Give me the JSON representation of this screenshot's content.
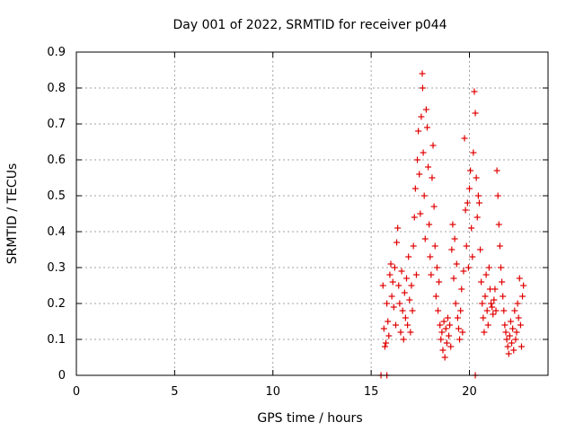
{
  "chart_data": {
    "type": "scatter",
    "title": "Day 001 of 2022, SRMTID for receiver p044",
    "xlabel": "GPS time / hours",
    "ylabel": "SRMTID / TECUs",
    "xlim": [
      0,
      24
    ],
    "ylim": [
      0,
      0.9
    ],
    "xticks": [
      0,
      5,
      10,
      15,
      20
    ],
    "yticks": [
      0,
      0.1,
      0.2,
      0.3,
      0.4,
      0.5,
      0.6,
      0.7,
      0.8,
      0.9
    ],
    "grid": true,
    "marker": "+",
    "color": "#e00000",
    "series": [
      {
        "name": "p044",
        "points": [
          [
            15.5,
            0.0
          ],
          [
            15.8,
            0.0
          ],
          [
            20.3,
            0.0
          ],
          [
            15.6,
            0.25
          ],
          [
            15.65,
            0.13
          ],
          [
            15.7,
            0.08
          ],
          [
            15.75,
            0.09
          ],
          [
            15.8,
            0.2
          ],
          [
            15.85,
            0.15
          ],
          [
            15.9,
            0.11
          ],
          [
            15.95,
            0.28
          ],
          [
            16.0,
            0.31
          ],
          [
            16.05,
            0.22
          ],
          [
            16.1,
            0.26
          ],
          [
            16.15,
            0.19
          ],
          [
            16.2,
            0.3
          ],
          [
            16.25,
            0.14
          ],
          [
            16.3,
            0.37
          ],
          [
            16.35,
            0.41
          ],
          [
            16.4,
            0.25
          ],
          [
            16.45,
            0.2
          ],
          [
            16.5,
            0.12
          ],
          [
            16.55,
            0.29
          ],
          [
            16.6,
            0.18
          ],
          [
            16.65,
            0.1
          ],
          [
            16.7,
            0.23
          ],
          [
            16.75,
            0.16
          ],
          [
            16.8,
            0.27
          ],
          [
            16.85,
            0.14
          ],
          [
            16.9,
            0.33
          ],
          [
            16.95,
            0.21
          ],
          [
            17.0,
            0.12
          ],
          [
            17.05,
            0.25
          ],
          [
            17.1,
            0.18
          ],
          [
            17.15,
            0.36
          ],
          [
            17.2,
            0.44
          ],
          [
            17.25,
            0.52
          ],
          [
            17.3,
            0.28
          ],
          [
            17.35,
            0.6
          ],
          [
            17.4,
            0.68
          ],
          [
            17.45,
            0.56
          ],
          [
            17.5,
            0.45
          ],
          [
            17.55,
            0.72
          ],
          [
            17.6,
            0.84
          ],
          [
            17.62,
            0.8
          ],
          [
            17.65,
            0.62
          ],
          [
            17.7,
            0.5
          ],
          [
            17.75,
            0.38
          ],
          [
            17.8,
            0.74
          ],
          [
            17.85,
            0.69
          ],
          [
            17.9,
            0.58
          ],
          [
            17.95,
            0.42
          ],
          [
            18.0,
            0.33
          ],
          [
            18.05,
            0.28
          ],
          [
            18.1,
            0.55
          ],
          [
            18.15,
            0.64
          ],
          [
            18.2,
            0.47
          ],
          [
            18.25,
            0.36
          ],
          [
            18.3,
            0.22
          ],
          [
            18.35,
            0.3
          ],
          [
            18.4,
            0.18
          ],
          [
            18.45,
            0.26
          ],
          [
            18.5,
            0.14
          ],
          [
            18.55,
            0.1
          ],
          [
            18.6,
            0.12
          ],
          [
            18.65,
            0.07
          ],
          [
            18.7,
            0.15
          ],
          [
            18.75,
            0.05
          ],
          [
            18.8,
            0.13
          ],
          [
            18.85,
            0.09
          ],
          [
            18.9,
            0.16
          ],
          [
            18.95,
            0.11
          ],
          [
            19.0,
            0.14
          ],
          [
            19.05,
            0.08
          ],
          [
            19.1,
            0.35
          ],
          [
            19.15,
            0.42
          ],
          [
            19.2,
            0.27
          ],
          [
            19.25,
            0.38
          ],
          [
            19.3,
            0.2
          ],
          [
            19.35,
            0.31
          ],
          [
            19.4,
            0.16
          ],
          [
            19.45,
            0.13
          ],
          [
            19.5,
            0.1
          ],
          [
            19.55,
            0.18
          ],
          [
            19.6,
            0.24
          ],
          [
            19.65,
            0.12
          ],
          [
            19.7,
            0.29
          ],
          [
            19.75,
            0.66
          ],
          [
            19.8,
            0.46
          ],
          [
            19.85,
            0.36
          ],
          [
            19.9,
            0.48
          ],
          [
            19.95,
            0.3
          ],
          [
            20.0,
            0.52
          ],
          [
            20.05,
            0.57
          ],
          [
            20.1,
            0.41
          ],
          [
            20.15,
            0.33
          ],
          [
            20.2,
            0.62
          ],
          [
            20.25,
            0.79
          ],
          [
            20.3,
            0.73
          ],
          [
            20.35,
            0.55
          ],
          [
            20.4,
            0.44
          ],
          [
            20.45,
            0.5
          ],
          [
            20.5,
            0.48
          ],
          [
            20.55,
            0.35
          ],
          [
            20.6,
            0.26
          ],
          [
            20.65,
            0.2
          ],
          [
            20.7,
            0.16
          ],
          [
            20.75,
            0.12
          ],
          [
            20.8,
            0.22
          ],
          [
            20.85,
            0.28
          ],
          [
            20.9,
            0.18
          ],
          [
            20.95,
            0.14
          ],
          [
            21.0,
            0.3
          ],
          [
            21.05,
            0.24
          ],
          [
            21.1,
            0.2
          ],
          [
            21.15,
            0.19
          ],
          [
            21.2,
            0.17
          ],
          [
            21.25,
            0.21
          ],
          [
            21.3,
            0.24
          ],
          [
            21.35,
            0.18
          ],
          [
            21.4,
            0.57
          ],
          [
            21.45,
            0.5
          ],
          [
            21.5,
            0.42
          ],
          [
            21.55,
            0.36
          ],
          [
            21.6,
            0.3
          ],
          [
            21.65,
            0.26
          ],
          [
            21.7,
            0.22
          ],
          [
            21.75,
            0.18
          ],
          [
            21.8,
            0.14
          ],
          [
            21.85,
            0.12
          ],
          [
            21.9,
            0.1
          ],
          [
            21.95,
            0.08
          ],
          [
            22.0,
            0.06
          ],
          [
            22.05,
            0.11
          ],
          [
            22.1,
            0.15
          ],
          [
            22.15,
            0.09
          ],
          [
            22.2,
            0.13
          ],
          [
            22.25,
            0.07
          ],
          [
            22.3,
            0.18
          ],
          [
            22.35,
            0.1
          ],
          [
            22.4,
            0.12
          ],
          [
            22.45,
            0.2
          ],
          [
            22.5,
            0.16
          ],
          [
            22.55,
            0.27
          ],
          [
            22.6,
            0.14
          ],
          [
            22.65,
            0.08
          ],
          [
            22.7,
            0.22
          ],
          [
            22.75,
            0.25
          ]
        ]
      }
    ]
  }
}
